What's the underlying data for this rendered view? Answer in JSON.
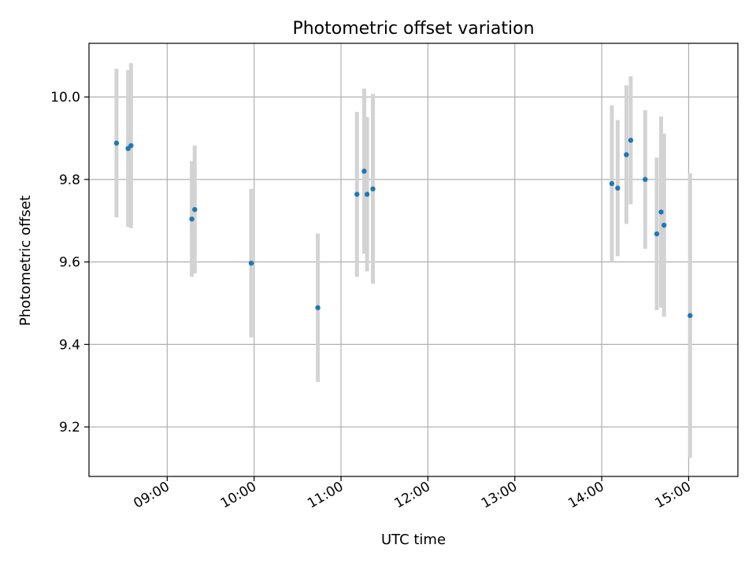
{
  "chart_data": {
    "type": "scatter",
    "title": "Photometric offset variation",
    "xlabel": "UTC time",
    "ylabel": "Photometric offset",
    "x_is_time": true,
    "xlim": [
      "08:06",
      "15:34"
    ],
    "ylim": [
      9.08,
      10.13
    ],
    "x_ticks": [
      "09:00",
      "10:00",
      "11:00",
      "12:00",
      "13:00",
      "14:00",
      "15:00"
    ],
    "y_ticks": [
      9.2,
      9.4,
      9.6,
      9.8,
      10.0
    ],
    "y_tick_labels": [
      "9.2",
      "9.4",
      "9.6",
      "9.8",
      "10.0"
    ],
    "grid": true,
    "colors": {
      "point": "#1f77b4",
      "errorbar": "#d3d3d3",
      "grid": "#b0b0b0",
      "axes": "#000000"
    },
    "points": [
      {
        "x": "08:25",
        "y": 9.888,
        "err": 0.18
      },
      {
        "x": "08:33",
        "y": 9.875,
        "err": 0.19
      },
      {
        "x": "08:35",
        "y": 9.882,
        "err": 0.2
      },
      {
        "x": "09:17",
        "y": 9.704,
        "err": 0.14
      },
      {
        "x": "09:19",
        "y": 9.727,
        "err": 0.155
      },
      {
        "x": "09:58",
        "y": 9.597,
        "err": 0.18
      },
      {
        "x": "10:44",
        "y": 9.489,
        "err": 0.18
      },
      {
        "x": "11:11",
        "y": 9.764,
        "err": 0.2
      },
      {
        "x": "11:16",
        "y": 9.82,
        "err": 0.2
      },
      {
        "x": "11:18",
        "y": 9.764,
        "err": 0.187
      },
      {
        "x": "11:22",
        "y": 9.777,
        "err": 0.23
      },
      {
        "x": "14:07",
        "y": 9.79,
        "err": 0.19
      },
      {
        "x": "14:11",
        "y": 9.779,
        "err": 0.165
      },
      {
        "x": "14:17",
        "y": 9.86,
        "err": 0.168
      },
      {
        "x": "14:20",
        "y": 9.895,
        "err": 0.155
      },
      {
        "x": "14:30",
        "y": 9.8,
        "err": 0.168
      },
      {
        "x": "14:38",
        "y": 9.668,
        "err": 0.185
      },
      {
        "x": "14:41",
        "y": 9.721,
        "err": 0.232
      },
      {
        "x": "14:43",
        "y": 9.689,
        "err": 0.222
      },
      {
        "x": "15:01",
        "y": 9.47,
        "err": 0.345
      }
    ]
  }
}
